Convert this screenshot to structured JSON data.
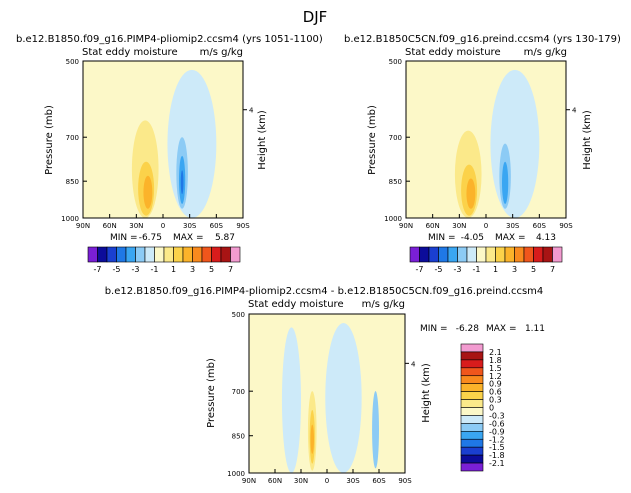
{
  "page_title": "DJF",
  "colors": {
    "cb": [
      "#7a1fd6",
      "#0c0c9a",
      "#1a3fd0",
      "#1f78e6",
      "#3aa6f2",
      "#8ccbf5",
      "#cdeaf9",
      "#fcf8c8",
      "#fbe98a",
      "#fbd24a",
      "#fbb32a",
      "#f98a1e",
      "#f0561c",
      "#d81c1c",
      "#a81414",
      "#f29bd0"
    ],
    "panel_bg": "#fcf8c8"
  },
  "chart_data": [
    {
      "type": "heatmap",
      "id": "p1",
      "title": "b.e12.B1850.f09_g16.PIMP4-pliomip2.ccsm4 (yrs 1051-1100)",
      "subtitle_left": "Stat eddy moisture",
      "subtitle_right": "m/s g/kg",
      "ylabel": "Pressure (mb)",
      "ylabel_right": "Height (km)",
      "yticks": [
        "500",
        "700",
        "850",
        "1000"
      ],
      "right_tick": "4",
      "xticks": [
        "90N",
        "60N",
        "30N",
        "0",
        "30S",
        "60S",
        "90S"
      ],
      "stats_min_label": "MIN =",
      "stats_min": "-6.75",
      "stats_max_label": "MAX =",
      "stats_max": "5.87",
      "features": [
        {
          "lat": 55,
          "p1": 520,
          "p2": 1000,
          "lat2": 20,
          "cls": 7
        },
        {
          "lat": 35,
          "p1": 650,
          "p2": 1000,
          "lat2": 5,
          "cls": 8
        },
        {
          "lat": 28,
          "p1": 780,
          "p2": 990,
          "lat2": 10,
          "cls": 9
        },
        {
          "lat": 22,
          "p1": 830,
          "p2": 960,
          "lat2": 12,
          "cls": 10
        },
        {
          "lat": -5,
          "p1": 520,
          "p2": 1000,
          "lat2": -60,
          "cls": 6
        },
        {
          "lat": -15,
          "p1": 700,
          "p2": 960,
          "lat2": -28,
          "cls": 5
        },
        {
          "lat": -18,
          "p1": 760,
          "p2": 940,
          "lat2": -25,
          "cls": 4
        },
        {
          "lat": -20,
          "p1": 810,
          "p2": 900,
          "lat2": -23,
          "cls": 3
        }
      ]
    },
    {
      "type": "heatmap",
      "id": "p2",
      "title": "b.e12.B1850C5CN.f09_g16.preind.ccsm4 (yrs 130-179)",
      "subtitle_left": "Stat eddy moisture",
      "subtitle_right": "m/s g/kg",
      "ylabel": "Pressure (mb)",
      "ylabel_right": "Height (km)",
      "yticks": [
        "500",
        "700",
        "850",
        "1000"
      ],
      "right_tick": "4",
      "xticks": [
        "90N",
        "60N",
        "30N",
        "0",
        "30S",
        "60S",
        "90S"
      ],
      "stats_min_label": "MIN =",
      "stats_min": "-4.05",
      "stats_max_label": "MAX =",
      "stats_max": "4.13",
      "features": [
        {
          "lat": 55,
          "p1": 520,
          "p2": 1000,
          "lat2": 20,
          "cls": 7
        },
        {
          "lat": 35,
          "p1": 680,
          "p2": 1000,
          "lat2": 5,
          "cls": 8
        },
        {
          "lat": 28,
          "p1": 790,
          "p2": 990,
          "lat2": 10,
          "cls": 9
        },
        {
          "lat": 22,
          "p1": 840,
          "p2": 960,
          "lat2": 12,
          "cls": 10
        },
        {
          "lat": -5,
          "p1": 520,
          "p2": 1000,
          "lat2": -60,
          "cls": 6
        },
        {
          "lat": -15,
          "p1": 720,
          "p2": 960,
          "lat2": -28,
          "cls": 5
        },
        {
          "lat": -18,
          "p1": 780,
          "p2": 940,
          "lat2": -25,
          "cls": 4
        }
      ]
    },
    {
      "type": "heatmap",
      "id": "p3",
      "title": "b.e12.B1850.f09_g16.PIMP4-pliomip2.ccsm4 - b.e12.B1850C5CN.f09_g16.preind.ccsm4",
      "subtitle_left": "Stat eddy moisture",
      "subtitle_right": "m/s g/kg",
      "ylabel": "Pressure (mb)",
      "ylabel_right": "Height (km)",
      "yticks": [
        "500",
        "700",
        "850",
        "1000"
      ],
      "right_tick": "4",
      "xticks": [
        "90N",
        "60N",
        "30N",
        "0",
        "30S",
        "60S",
        "90S"
      ],
      "stats_min_label": "MIN =",
      "stats_min": "-6.28",
      "stats_max_label": "MAX =",
      "stats_max": "1.11",
      "features": [
        {
          "lat": 52,
          "p1": 530,
          "p2": 1000,
          "lat2": 30,
          "cls": 6
        },
        {
          "lat": 2,
          "p1": 520,
          "p2": 1000,
          "lat2": -40,
          "cls": 6
        },
        {
          "lat": 22,
          "p1": 700,
          "p2": 990,
          "lat2": 12,
          "cls": 8
        },
        {
          "lat": 20,
          "p1": 760,
          "p2": 960,
          "lat2": 14,
          "cls": 9
        },
        {
          "lat": 19,
          "p1": 810,
          "p2": 920,
          "lat2": 15,
          "cls": 10
        },
        {
          "lat": -52,
          "p1": 700,
          "p2": 980,
          "lat2": -60,
          "cls": 5
        }
      ]
    }
  ],
  "colorbar_small": {
    "labels": [
      "-7",
      "-5",
      "-3",
      "-1",
      "1",
      "3",
      "5",
      "7"
    ]
  },
  "colorbar_vertical": {
    "labels": [
      "2.1",
      "1.8",
      "1.5",
      "1.2",
      "0.9",
      "0.6",
      "0.3",
      "0",
      "-0.3",
      "-0.6",
      "-0.9",
      "-1.2",
      "-1.5",
      "-1.8",
      "-2.1"
    ]
  }
}
